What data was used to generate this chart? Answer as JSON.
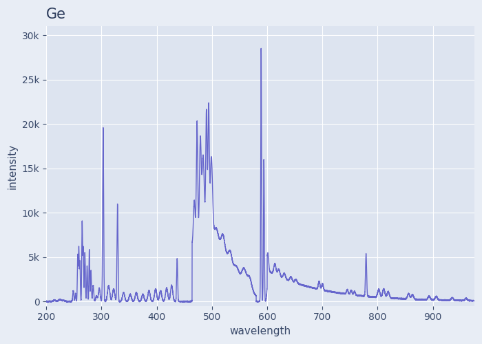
{
  "title": "Ge",
  "xlabel": "wavelength",
  "ylabel": "intensity",
  "xlim": [
    200,
    975
  ],
  "ylim": [
    -500,
    31000
  ],
  "line_color": "#6666cc",
  "line_width": 1.0,
  "bg_color": "#e8edf5",
  "plot_bg_color": "#dde4f0",
  "grid_color": "#ffffff",
  "title_color": "#2a3a5a",
  "label_color": "#3a4a6a",
  "tick_color": "#3a4a6a",
  "yticks": [
    0,
    5000,
    10000,
    15000,
    20000,
    25000,
    30000
  ],
  "xticks": [
    200,
    300,
    400,
    500,
    600,
    700,
    800,
    900
  ]
}
